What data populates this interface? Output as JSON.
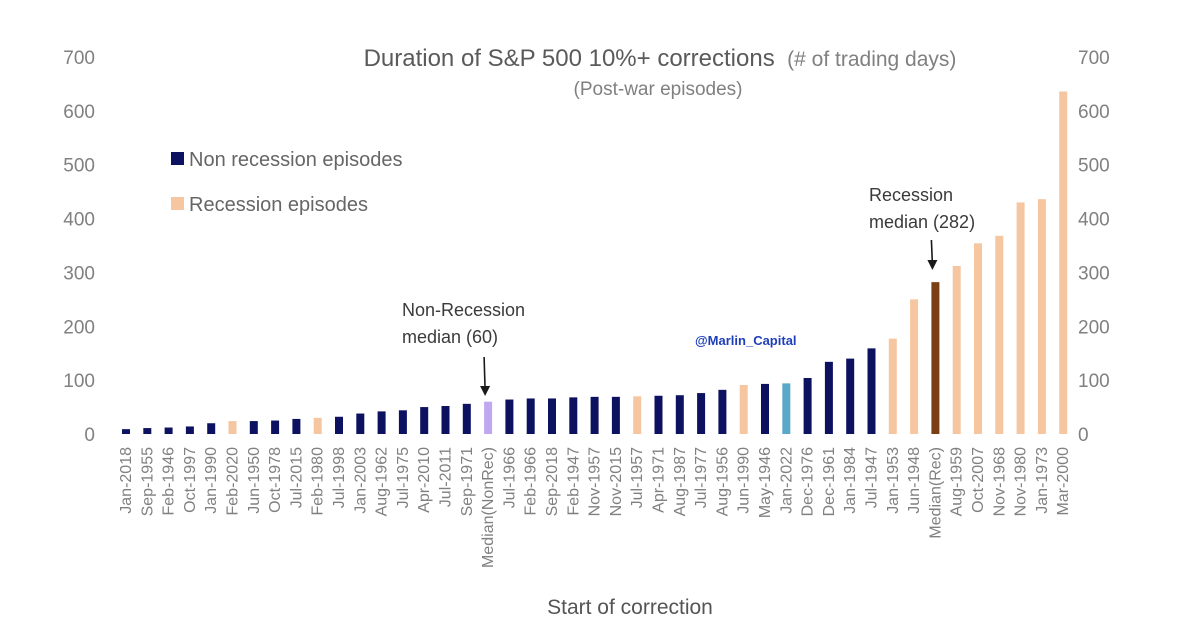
{
  "chart_data": {
    "type": "bar",
    "title": "Duration of S&P 500 10%+ corrections",
    "title_suffix": "(# of trading days)",
    "subtitle": "(Post-war episodes)",
    "xlabel": "Start of correction",
    "ylabel": "",
    "ylim": [
      0,
      700
    ],
    "yticks": [
      0,
      100,
      200,
      300,
      400,
      500,
      600,
      700
    ],
    "secondary_y_axis": true,
    "legend_position": "top-left",
    "legend": [
      {
        "name": "Non recession episodes",
        "color": "#0d1260"
      },
      {
        "name": "Recession episodes",
        "color": "#f5c6a0"
      }
    ],
    "colors": {
      "non_recession": "#0d1260",
      "recession": "#f5c6a0",
      "median_nonrec": "#c0a8f0",
      "median_rec": "#7b3f14",
      "highlight": "#5aa8c8"
    },
    "categories": [
      "Jan-2018",
      "Sep-1955",
      "Feb-1946",
      "Oct-1997",
      "Jan-1990",
      "Feb-2020",
      "Jun-1950",
      "Oct-1978",
      "Jul-2015",
      "Feb-1980",
      "Jul-1998",
      "Jan-2003",
      "Aug-1962",
      "Jul-1975",
      "Apr-2010",
      "Jul-2011",
      "Sep-1971",
      "Median(NonRec)",
      "Jul-1966",
      "Feb-1966",
      "Sep-2018",
      "Feb-1947",
      "Nov-1957",
      "Nov-2015",
      "Jul-1957",
      "Apr-1971",
      "Aug-1987",
      "Jul-1977",
      "Aug-1956",
      "Jun-1990",
      "May-1946",
      "Jan-2022",
      "Dec-1976",
      "Dec-1961",
      "Jan-1984",
      "Jul-1947",
      "Jan-1953",
      "Jun-1948",
      "Median(Rec)",
      "Aug-1959",
      "Oct-2007",
      "Nov-1968",
      "Nov-1980",
      "Jan-1973",
      "Mar-2000"
    ],
    "values": [
      9,
      11,
      12,
      14,
      20,
      24,
      24,
      25,
      28,
      30,
      32,
      38,
      42,
      44,
      50,
      52,
      56,
      60,
      64,
      66,
      66,
      68,
      69,
      69,
      70,
      71,
      72,
      76,
      82,
      91,
      93,
      94,
      104,
      134,
      140,
      159,
      177,
      250,
      282,
      312,
      354,
      368,
      430,
      436,
      636
    ],
    "bar_types": [
      "non_recession",
      "non_recession",
      "non_recession",
      "non_recession",
      "non_recession",
      "recession",
      "non_recession",
      "non_recession",
      "non_recession",
      "recession",
      "non_recession",
      "non_recession",
      "non_recession",
      "non_recession",
      "non_recession",
      "non_recession",
      "non_recession",
      "median_nonrec",
      "non_recession",
      "non_recession",
      "non_recession",
      "non_recession",
      "non_recession",
      "non_recession",
      "recession",
      "non_recession",
      "non_recession",
      "non_recession",
      "non_recession",
      "recession",
      "non_recession",
      "highlight",
      "non_recession",
      "non_recession",
      "non_recession",
      "non_recession",
      "recession",
      "recession",
      "median_rec",
      "recession",
      "recession",
      "recession",
      "recession",
      "recession",
      "recession"
    ],
    "annotations": [
      {
        "lines": [
          "Non-Recession",
          "median (60)"
        ],
        "target": "Median(NonRec)"
      },
      {
        "lines": [
          "Recession",
          "median (282)"
        ],
        "target": "Median(Rec)"
      }
    ]
  },
  "watermark": "@Marlin_Capital"
}
